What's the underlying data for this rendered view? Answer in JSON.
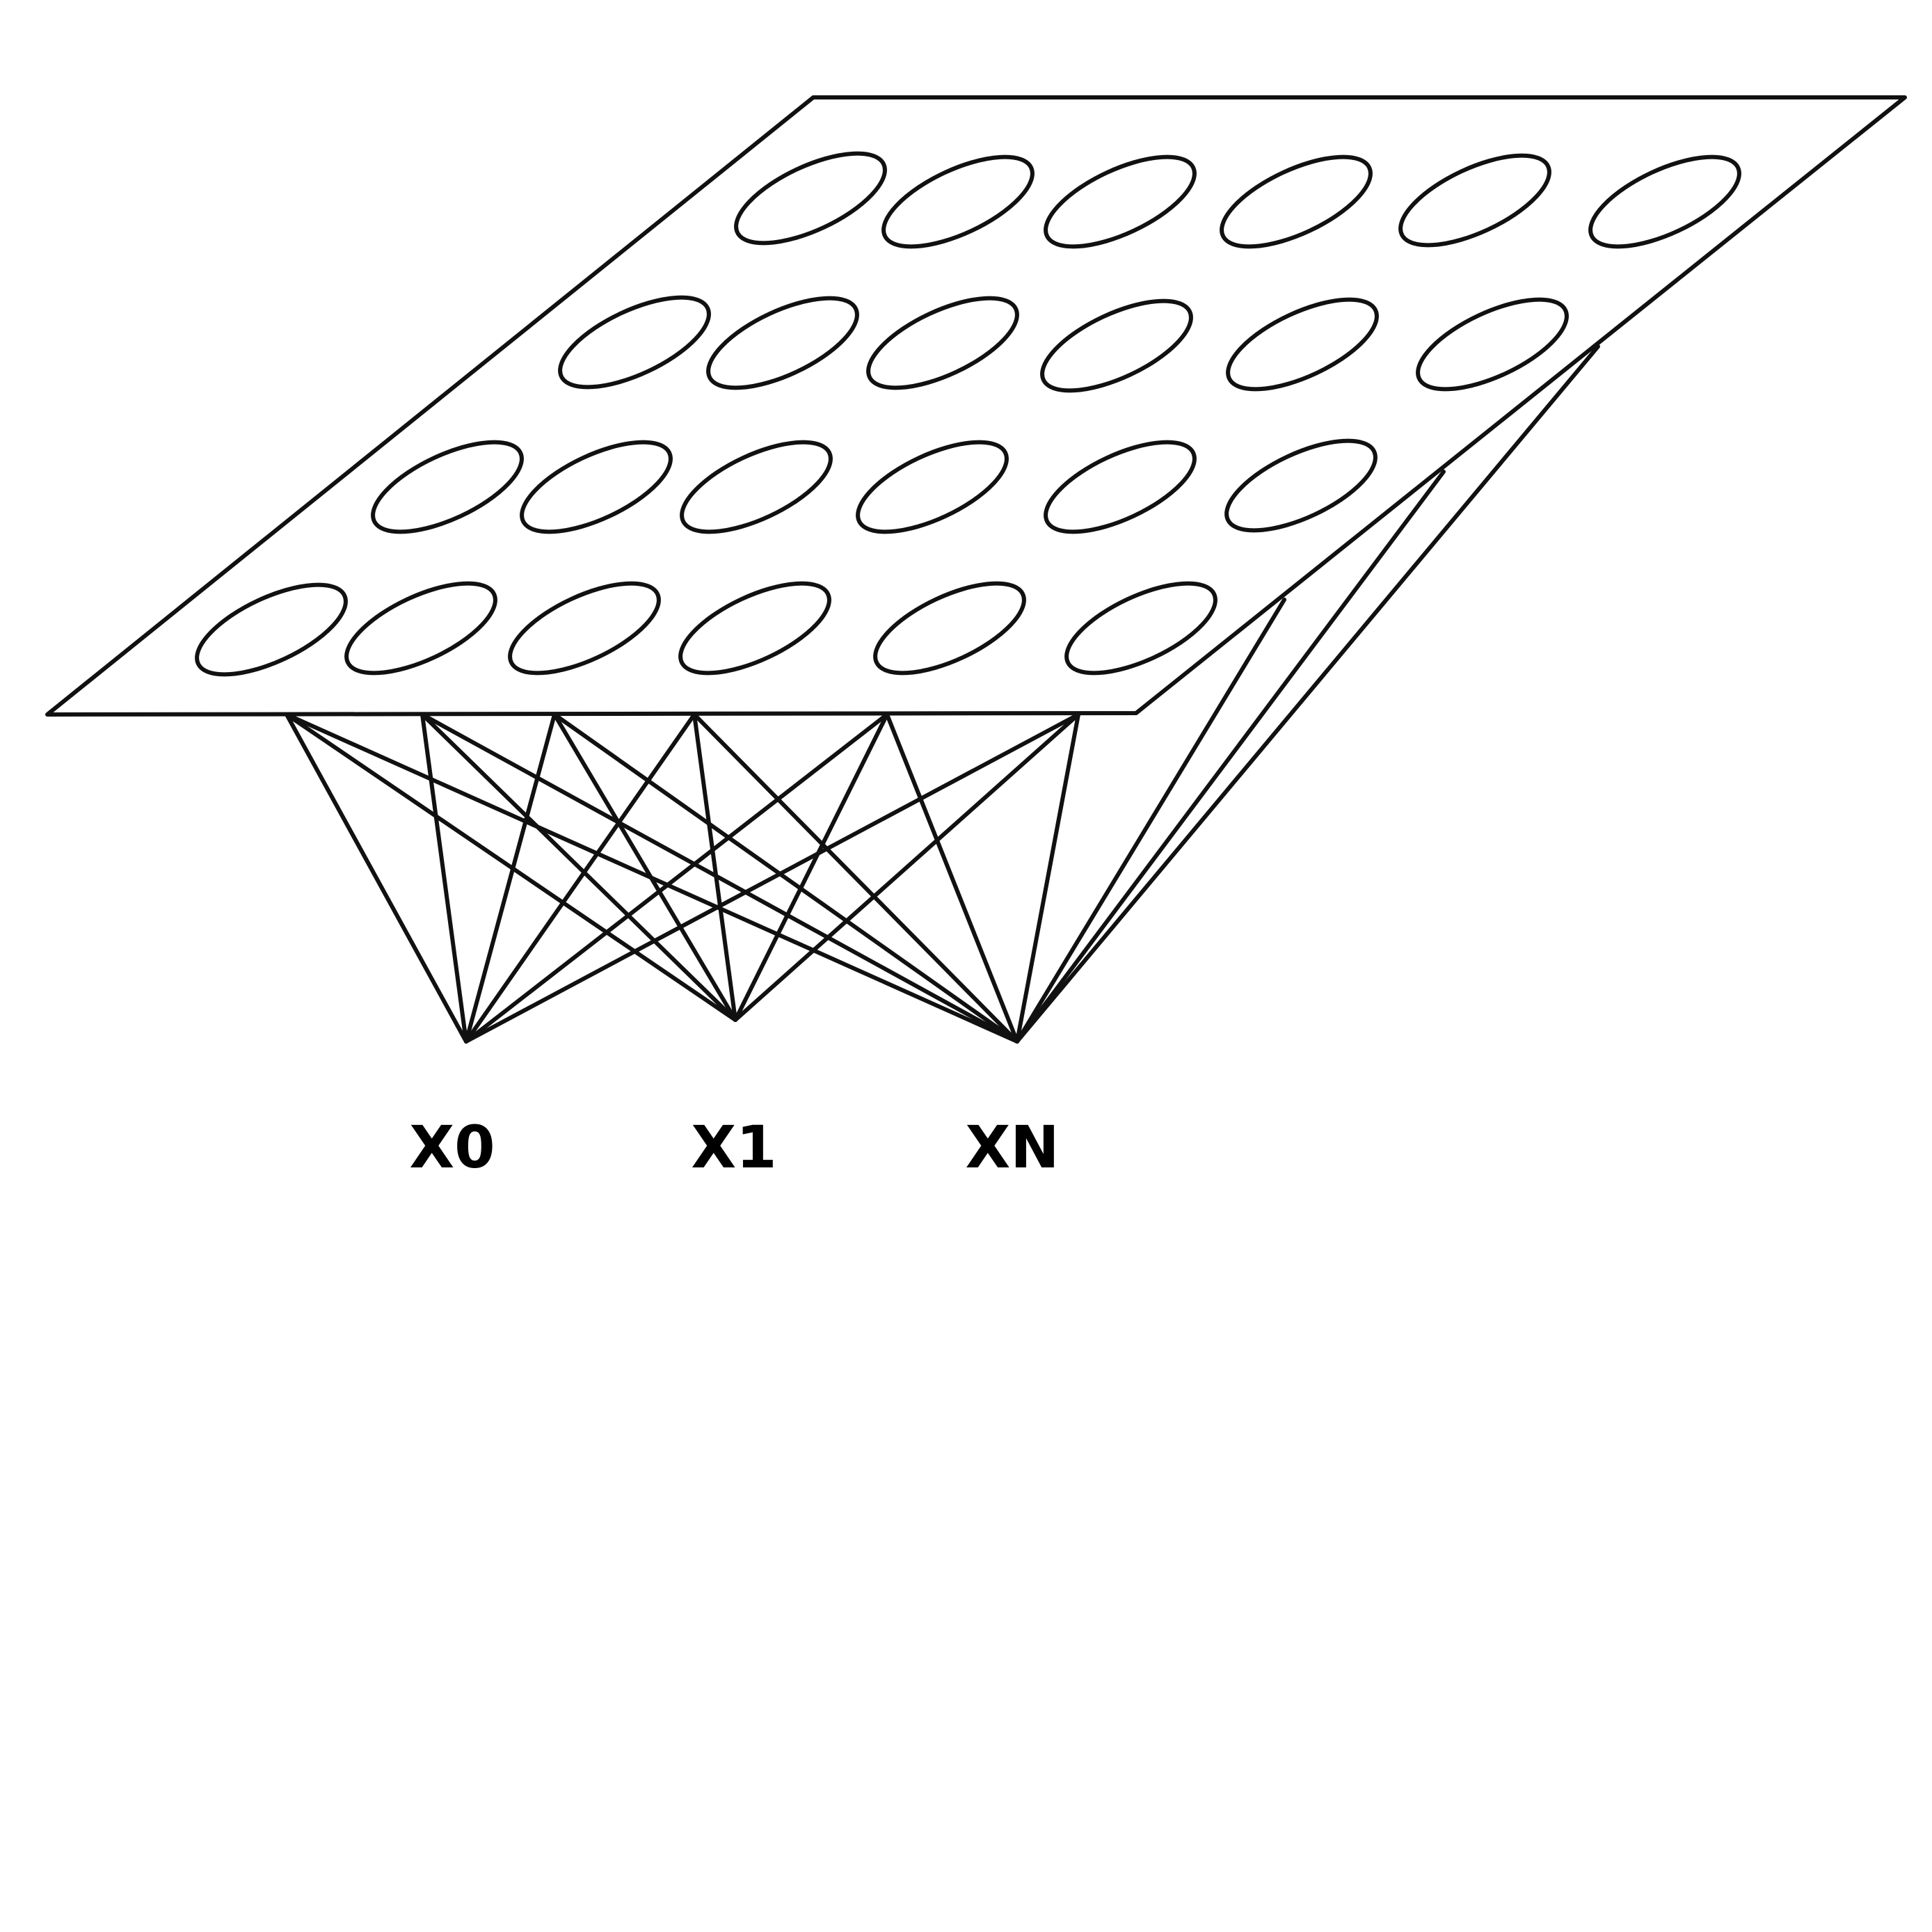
{
  "diagram": {
    "type": "neural-network-layer",
    "input_grid": {
      "rows": 4,
      "columns": 6
    },
    "output_nodes": [
      {
        "label": "X0"
      },
      {
        "label": "X1"
      },
      {
        "label": "XN"
      }
    ]
  },
  "colors": {
    "line": "#111111",
    "text": "#000000",
    "background": "#ffffff"
  }
}
